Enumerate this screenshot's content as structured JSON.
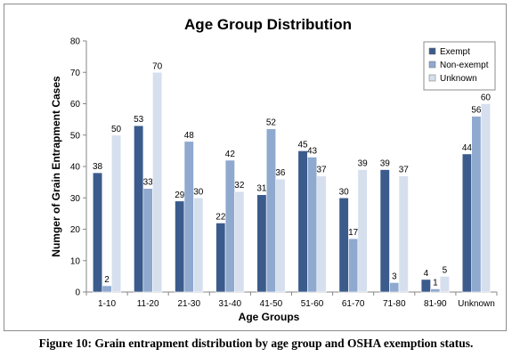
{
  "caption": "Figure 10: Grain entrapment distribution by age group and OSHA exemption status.",
  "chart_data": {
    "type": "bar",
    "title": "Age Group Distribution",
    "xlabel": "Age Groups",
    "ylabel": "Numger of Grain Entrapment Cases",
    "ylim": [
      0,
      80
    ],
    "yticks": [
      0,
      10,
      20,
      30,
      40,
      50,
      60,
      70,
      80
    ],
    "grid": false,
    "legend_position": "top-right",
    "categories": [
      "1-10",
      "11-20",
      "21-30",
      "31-40",
      "41-50",
      "51-60",
      "61-70",
      "71-80",
      "81-90",
      "Unknown"
    ],
    "series": [
      {
        "name": "Exempt",
        "color": "#3b5b8c",
        "values": [
          38,
          53,
          29,
          22,
          31,
          45,
          30,
          39,
          4,
          44
        ]
      },
      {
        "name": "Non-exempt",
        "color": "#8fa9cf",
        "values": [
          2,
          33,
          48,
          42,
          52,
          43,
          17,
          3,
          1,
          56
        ]
      },
      {
        "name": "Unknown",
        "color": "#d6dfee",
        "values": [
          50,
          70,
          30,
          32,
          36,
          37,
          39,
          37,
          5,
          60
        ]
      }
    ]
  }
}
